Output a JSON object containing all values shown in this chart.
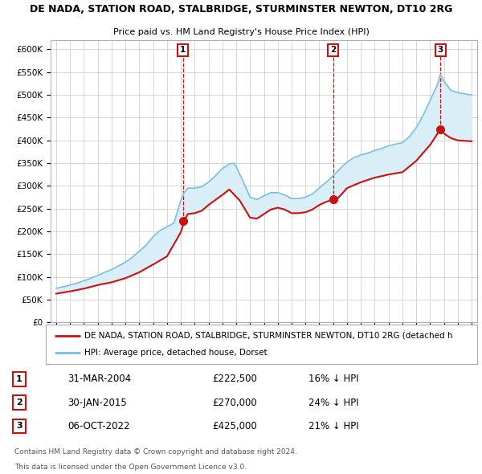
{
  "title": "DE NADA, STATION ROAD, STALBRIDGE, STURMINSTER NEWTON, DT10 2RG",
  "subtitle": "Price paid vs. HM Land Registry's House Price Index (HPI)",
  "ylim": [
    0,
    620000
  ],
  "yticks": [
    0,
    50000,
    100000,
    150000,
    200000,
    250000,
    300000,
    350000,
    400000,
    450000,
    500000,
    550000,
    600000
  ],
  "sale_prices": [
    222500,
    270000,
    425000
  ],
  "sale_labels": [
    "1",
    "2",
    "3"
  ],
  "sale_dates_str": [
    "31-MAR-2004",
    "30-JAN-2015",
    "06-OCT-2022"
  ],
  "sale_pct": [
    "16%",
    "24%",
    "21%"
  ],
  "hpi_color": "#7bbfe0",
  "hpi_fill_color": "#daeef8",
  "sale_color": "#cc1111",
  "marker_color": "#cc1111",
  "legend_property_label": "DE NADA, STATION ROAD, STALBRIDGE, STURMINSTER NEWTON, DT10 2RG (detached h",
  "legend_hpi_label": "HPI: Average price, detached house, Dorset",
  "footer1": "Contains HM Land Registry data © Crown copyright and database right 2024.",
  "footer2": "This data is licensed under the Open Government Licence v3.0.",
  "background_color": "#ffffff",
  "plot_bg_color": "#ffffff",
  "grid_color": "#d0d0d0",
  "hpi_control_points": [
    [
      1995.0,
      75000
    ],
    [
      1995.5,
      78000
    ],
    [
      1996.0,
      82000
    ],
    [
      1996.5,
      86000
    ],
    [
      1997.0,
      91000
    ],
    [
      1997.5,
      97000
    ],
    [
      1998.0,
      103000
    ],
    [
      1998.5,
      110000
    ],
    [
      1999.0,
      116000
    ],
    [
      1999.5,
      124000
    ],
    [
      2000.0,
      132000
    ],
    [
      2000.5,
      143000
    ],
    [
      2001.0,
      156000
    ],
    [
      2001.5,
      170000
    ],
    [
      2002.0,
      188000
    ],
    [
      2002.5,
      202000
    ],
    [
      2003.0,
      210000
    ],
    [
      2003.5,
      218000
    ],
    [
      2004.0,
      268000
    ],
    [
      2004.25,
      285000
    ],
    [
      2004.5,
      295000
    ],
    [
      2005.0,
      295000
    ],
    [
      2005.5,
      298000
    ],
    [
      2006.0,
      308000
    ],
    [
      2006.5,
      322000
    ],
    [
      2007.0,
      338000
    ],
    [
      2007.5,
      348000
    ],
    [
      2007.83,
      350000
    ],
    [
      2008.0,
      342000
    ],
    [
      2008.5,
      310000
    ],
    [
      2009.0,
      275000
    ],
    [
      2009.5,
      270000
    ],
    [
      2010.0,
      278000
    ],
    [
      2010.5,
      285000
    ],
    [
      2011.0,
      285000
    ],
    [
      2011.5,
      280000
    ],
    [
      2012.0,
      272000
    ],
    [
      2012.5,
      272000
    ],
    [
      2013.0,
      275000
    ],
    [
      2013.5,
      282000
    ],
    [
      2014.0,
      295000
    ],
    [
      2014.5,
      308000
    ],
    [
      2015.0,
      322000
    ],
    [
      2015.5,
      338000
    ],
    [
      2016.0,
      352000
    ],
    [
      2016.5,
      362000
    ],
    [
      2017.0,
      368000
    ],
    [
      2017.5,
      372000
    ],
    [
      2018.0,
      378000
    ],
    [
      2018.5,
      382000
    ],
    [
      2019.0,
      388000
    ],
    [
      2019.5,
      392000
    ],
    [
      2020.0,
      395000
    ],
    [
      2020.5,
      408000
    ],
    [
      2021.0,
      428000
    ],
    [
      2021.5,
      455000
    ],
    [
      2022.0,
      488000
    ],
    [
      2022.5,
      520000
    ],
    [
      2022.75,
      545000
    ],
    [
      2023.0,
      530000
    ],
    [
      2023.5,
      510000
    ],
    [
      2024.0,
      505000
    ],
    [
      2024.5,
      502000
    ],
    [
      2025.0,
      500000
    ]
  ],
  "prop_control_points": [
    [
      1995.0,
      63000
    ],
    [
      1996.0,
      68000
    ],
    [
      1997.0,
      74000
    ],
    [
      1998.0,
      82000
    ],
    [
      1999.0,
      88000
    ],
    [
      2000.0,
      97000
    ],
    [
      2001.0,
      110000
    ],
    [
      2002.0,
      127000
    ],
    [
      2003.0,
      145000
    ],
    [
      2004.0,
      198000
    ],
    [
      2004.25,
      222500
    ],
    [
      2004.5,
      238000
    ],
    [
      2005.0,
      240000
    ],
    [
      2005.5,
      245000
    ],
    [
      2006.0,
      258000
    ],
    [
      2007.0,
      280000
    ],
    [
      2007.5,
      292000
    ],
    [
      2008.25,
      268000
    ],
    [
      2009.0,
      230000
    ],
    [
      2009.5,
      228000
    ],
    [
      2010.0,
      238000
    ],
    [
      2010.5,
      248000
    ],
    [
      2011.0,
      252000
    ],
    [
      2011.5,
      248000
    ],
    [
      2012.0,
      240000
    ],
    [
      2012.5,
      240000
    ],
    [
      2013.0,
      242000
    ],
    [
      2013.5,
      248000
    ],
    [
      2014.0,
      258000
    ],
    [
      2014.5,
      265000
    ],
    [
      2015.0,
      270000
    ],
    [
      2015.25,
      270000
    ],
    [
      2015.5,
      278000
    ],
    [
      2016.0,
      295000
    ],
    [
      2017.0,
      308000
    ],
    [
      2018.0,
      318000
    ],
    [
      2019.0,
      325000
    ],
    [
      2020.0,
      330000
    ],
    [
      2021.0,
      355000
    ],
    [
      2022.0,
      390000
    ],
    [
      2022.75,
      425000
    ],
    [
      2023.0,
      415000
    ],
    [
      2023.5,
      405000
    ],
    [
      2024.0,
      400000
    ],
    [
      2025.0,
      398000
    ]
  ]
}
